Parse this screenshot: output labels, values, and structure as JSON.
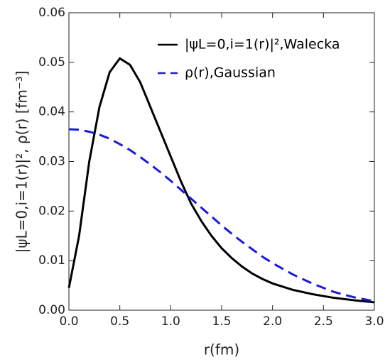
{
  "chart_data": {
    "type": "line",
    "x": [
      0,
      0.1,
      0.2,
      0.3,
      0.4,
      0.5,
      0.6,
      0.7,
      0.8,
      0.9,
      1.0,
      1.1,
      1.2,
      1.3,
      1.4,
      1.5,
      1.6,
      1.7,
      1.8,
      1.9,
      2.0,
      2.2,
      2.4,
      2.6,
      2.8,
      3.0
    ],
    "series": [
      {
        "name": "|ψL=0,i=1(r)|²,Walecka",
        "color": "#000000",
        "dash": false,
        "values": [
          0.0045,
          0.015,
          0.03,
          0.041,
          0.048,
          0.0508,
          0.0495,
          0.046,
          0.041,
          0.036,
          0.031,
          0.026,
          0.0215,
          0.018,
          0.015,
          0.0125,
          0.0105,
          0.0088,
          0.0074,
          0.0063,
          0.0054,
          0.0041,
          0.0032,
          0.0025,
          0.002,
          0.0016
        ]
      },
      {
        "name": "ρ(r),Gaussian",
        "color": "#1a1adb",
        "dash": true,
        "values": [
          0.0365,
          0.0364,
          0.036,
          0.0354,
          0.0346,
          0.0335,
          0.0323,
          0.0309,
          0.0294,
          0.0278,
          0.0261,
          0.0243,
          0.0225,
          0.0207,
          0.0189,
          0.0171,
          0.0154,
          0.0138,
          0.0123,
          0.0108,
          0.0095,
          0.0072,
          0.0053,
          0.0037,
          0.0026,
          0.0018
        ]
      }
    ],
    "xlabel": "r(fm)",
    "ylabel": "|ψL=0,i=1(r)|², ρ(r)    [fm⁻³]",
    "xlim": [
      0,
      3
    ],
    "ylim": [
      0,
      0.06
    ],
    "xticks": [
      {
        "value": 0,
        "label": "0.0"
      },
      {
        "value": 0.5,
        "label": "0.5"
      },
      {
        "value": 1,
        "label": "1.0"
      },
      {
        "value": 1.5,
        "label": "1.5"
      },
      {
        "value": 2,
        "label": "2.0"
      },
      {
        "value": 2.5,
        "label": "2.5"
      },
      {
        "value": 3,
        "label": "3.0"
      }
    ],
    "yticks": [
      {
        "value": 0,
        "label": "0.00"
      },
      {
        "value": 0.01,
        "label": "0.01"
      },
      {
        "value": 0.02,
        "label": "0.02"
      },
      {
        "value": 0.03,
        "label": "0.03"
      },
      {
        "value": 0.04,
        "label": "0.04"
      },
      {
        "value": 0.05,
        "label": "0.05"
      },
      {
        "value": 0.06,
        "label": "0.06"
      }
    ],
    "legend": "top-right"
  }
}
